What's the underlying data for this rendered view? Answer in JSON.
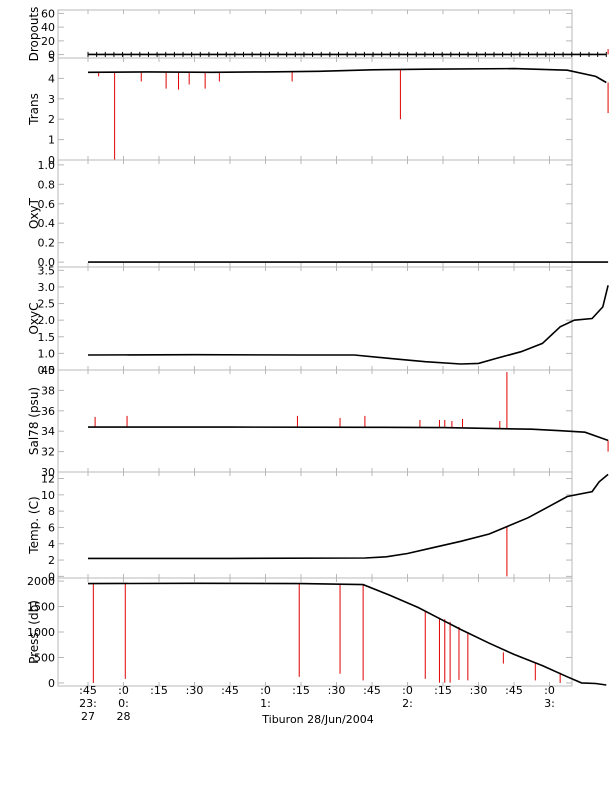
{
  "chart_data": {
    "type": "line",
    "x_axis": {
      "ticks": [
        ":45",
        ":0",
        ":15",
        ":30",
        ":45",
        ":0",
        ":15",
        ":30",
        ":45",
        ":0",
        ":15",
        ":30",
        ":45",
        ":0"
      ],
      "hours": [
        {
          "tick": 0,
          "label": "23:"
        },
        {
          "tick": 1,
          "label": "0:"
        },
        {
          "tick": 5,
          "label": "1:"
        },
        {
          "tick": 9,
          "label": "2:"
        },
        {
          "tick": 13,
          "label": "3:"
        }
      ],
      "days": [
        {
          "tick": 0,
          "label": "27"
        },
        {
          "tick": 1,
          "label": "28"
        }
      ],
      "xlabel": "Tiburon 28/Jun/2004"
    },
    "panels": [
      {
        "ylabel": "Dropouts",
        "ylim": [
          -5,
          65
        ],
        "yticks": [
          0,
          20,
          40,
          60
        ],
        "tick_labels": [
          "0",
          "20",
          "40",
          "60"
        ],
        "black_path": [
          [
            0,
            0.2
          ],
          [
            14.6,
            0.2
          ]
        ],
        "red_spikes": [
          [
            14.65,
            0.2,
            8
          ]
        ],
        "markers_plus": true
      },
      {
        "ylabel": "Trans",
        "ylim": [
          0,
          5
        ],
        "yticks": [
          0,
          1,
          2,
          3,
          4,
          5
        ],
        "tick_labels": [
          "0",
          "1",
          "2",
          "3",
          "4",
          "5"
        ],
        "black_path": [
          [
            0,
            4.3
          ],
          [
            1.7,
            4.32
          ],
          [
            3.5,
            4.3
          ],
          [
            5,
            4.32
          ],
          [
            6.5,
            4.35
          ],
          [
            8,
            4.42
          ],
          [
            9.5,
            4.45
          ],
          [
            12,
            4.48
          ],
          [
            13.5,
            4.4
          ],
          [
            14.3,
            4.1
          ],
          [
            14.6,
            3.8
          ]
        ],
        "red_spikes": [
          [
            0.3,
            4.3,
            4.1
          ],
          [
            0.75,
            4.3,
            0
          ],
          [
            1.5,
            4.3,
            3.85
          ],
          [
            2.2,
            4.3,
            3.5
          ],
          [
            2.55,
            4.3,
            3.45
          ],
          [
            2.85,
            4.3,
            3.7
          ],
          [
            3.3,
            4.3,
            3.5
          ],
          [
            3.7,
            4.3,
            3.85
          ],
          [
            5.75,
            4.35,
            3.85
          ],
          [
            8.8,
            4.42,
            2
          ],
          [
            14.65,
            3.8,
            2.3
          ]
        ],
        "markers_plus": false
      },
      {
        "ylabel": "OxyT",
        "ylim": [
          -0.05,
          1.05
        ],
        "yticks": [
          0,
          0.2,
          0.4,
          0.6,
          0.8,
          1
        ],
        "tick_labels": [
          "0.0",
          "0.2",
          "0.4",
          "0.6",
          "0.8",
          "1.0"
        ],
        "black_path": [
          [
            0,
            0
          ],
          [
            14.65,
            0
          ]
        ],
        "red_spikes": [],
        "markers_plus": false
      },
      {
        "ylabel": "OxyC",
        "ylim": [
          0.5,
          3.6
        ],
        "yticks": [
          0.5,
          1,
          1.5,
          2,
          2.5,
          3,
          3.5
        ],
        "tick_labels": [
          "0.5",
          "1.0",
          "1.5",
          "2.0",
          "2.5",
          "3.0",
          "3.5"
        ],
        "black_path": [
          [
            0,
            0.95
          ],
          [
            3,
            0.96
          ],
          [
            6,
            0.95
          ],
          [
            7.5,
            0.95
          ],
          [
            8.5,
            0.85
          ],
          [
            9.5,
            0.75
          ],
          [
            10.5,
            0.68
          ],
          [
            11,
            0.7
          ],
          [
            11.5,
            0.85
          ],
          [
            12.2,
            1.05
          ],
          [
            12.8,
            1.3
          ],
          [
            13.3,
            1.8
          ],
          [
            13.7,
            2
          ],
          [
            14.2,
            2.05
          ],
          [
            14.5,
            2.4
          ],
          [
            14.65,
            3.05
          ]
        ],
        "red_spikes": [],
        "markers_plus": false
      },
      {
        "ylabel": "Sal78 (psu)",
        "ylim": [
          30,
          40
        ],
        "yticks": [
          30,
          32,
          34,
          36,
          38,
          40
        ],
        "tick_labels": [
          "30",
          "32",
          "34",
          "36",
          "38",
          "40"
        ],
        "black_path": [
          [
            0,
            34.4
          ],
          [
            4,
            34.4
          ],
          [
            8,
            34.38
          ],
          [
            10,
            34.35
          ],
          [
            11.5,
            34.25
          ],
          [
            12.5,
            34.2
          ],
          [
            13.3,
            34.05
          ],
          [
            14,
            33.9
          ],
          [
            14.4,
            33.4
          ],
          [
            14.65,
            33.1
          ]
        ],
        "red_spikes": [
          [
            0.2,
            34.4,
            35.4
          ],
          [
            1.1,
            34.4,
            35.5
          ],
          [
            5.9,
            34.4,
            35.5
          ],
          [
            7.1,
            34.4,
            35.3
          ],
          [
            7.8,
            34.4,
            35.5
          ],
          [
            9.35,
            34.38,
            35.1
          ],
          [
            9.9,
            34.37,
            35.1
          ],
          [
            10.05,
            34.37,
            35.1
          ],
          [
            10.25,
            34.36,
            35
          ],
          [
            10.55,
            34.35,
            35.2
          ],
          [
            11.6,
            34.25,
            35
          ],
          [
            11.8,
            34.25,
            39.8
          ],
          [
            14.65,
            33.1,
            32
          ]
        ],
        "markers_plus": false
      },
      {
        "ylabel": "Temp. (C)",
        "ylim": [
          -0.2,
          12.8
        ],
        "yticks": [
          0,
          2,
          4,
          6,
          8,
          10,
          12
        ],
        "tick_labels": [
          "0",
          "2",
          "4",
          "6",
          "8",
          "10",
          "12"
        ],
        "black_path": [
          [
            0,
            2.2
          ],
          [
            4,
            2.2
          ],
          [
            7.8,
            2.25
          ],
          [
            8.4,
            2.4
          ],
          [
            9,
            2.8
          ],
          [
            9.7,
            3.5
          ],
          [
            10.5,
            4.3
          ],
          [
            11.3,
            5.2
          ],
          [
            11.8,
            6.1
          ],
          [
            12.4,
            7.2
          ],
          [
            13,
            8.6
          ],
          [
            13.5,
            9.8
          ],
          [
            14.2,
            10.4
          ],
          [
            14.4,
            11.6
          ],
          [
            14.65,
            12.5
          ]
        ],
        "red_spikes": [
          [
            11.8,
            6.1,
            0
          ]
        ],
        "markers_plus": false
      },
      {
        "ylabel": "Press. (db)",
        "ylim": [
          -60,
          2060
        ],
        "yticks": [
          0,
          500,
          1000,
          1500,
          2000
        ],
        "tick_labels": [
          "0",
          "500",
          "1000",
          "1500",
          "2000"
        ],
        "black_path": [
          [
            0,
            1950
          ],
          [
            3,
            1955
          ],
          [
            6,
            1950
          ],
          [
            7.75,
            1930
          ],
          [
            8.5,
            1720
          ],
          [
            9.3,
            1480
          ],
          [
            9.8,
            1300
          ],
          [
            10.5,
            1050
          ],
          [
            11.3,
            780
          ],
          [
            12,
            560
          ],
          [
            12.8,
            340
          ],
          [
            13.5,
            120
          ],
          [
            13.9,
            0
          ],
          [
            14.3,
            -10
          ],
          [
            14.6,
            -40
          ]
        ],
        "red_spikes": [
          [
            0.15,
            1950,
            0
          ],
          [
            1.05,
            1955,
            80
          ],
          [
            5.95,
            1955,
            120
          ],
          [
            7.1,
            1945,
            180
          ],
          [
            7.75,
            1930,
            50
          ],
          [
            9.5,
            1400,
            80
          ],
          [
            9.9,
            1280,
            5
          ],
          [
            10.05,
            1250,
            5
          ],
          [
            10.2,
            1200,
            5
          ],
          [
            10.45,
            1100,
            60
          ],
          [
            10.7,
            1000,
            50
          ],
          [
            11.7,
            600,
            380
          ],
          [
            12.6,
            380,
            50
          ],
          [
            13.3,
            200,
            0
          ]
        ],
        "markers_plus": false
      }
    ]
  }
}
